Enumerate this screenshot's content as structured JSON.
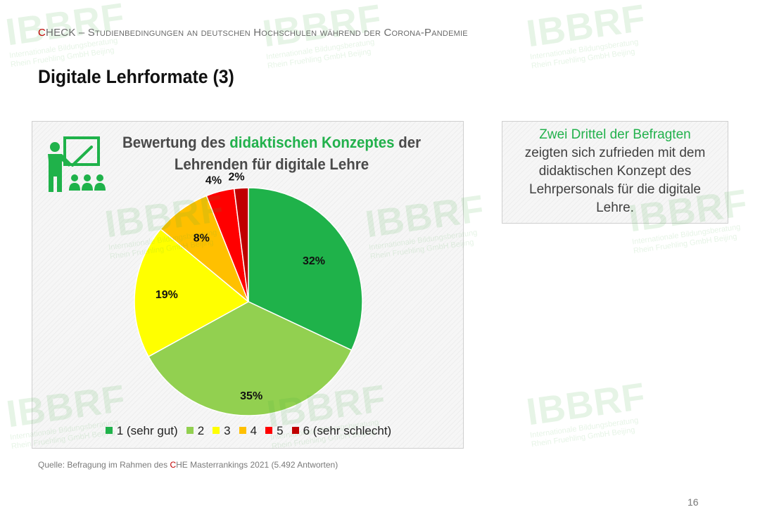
{
  "header": {
    "first_letter": "C",
    "rest": "HECK – Studienbedingungen an deutschen Hochschulen während der Corona-Pandemie"
  },
  "page_title": "Digitale Lehrformate (3)",
  "chart_data": {
    "type": "pie",
    "title_parts": [
      "Bewertung des ",
      "didaktischen Konzeptes",
      " der",
      "Lehrenden für digitale Lehre"
    ],
    "categories": [
      "1 (sehr gut)",
      "2",
      "3",
      "4",
      "5",
      "6 (sehr schlecht)"
    ],
    "values": [
      32,
      35,
      19,
      8,
      4,
      2
    ],
    "labels": [
      "32%",
      "35%",
      "19%",
      "8%",
      "4%",
      "2%"
    ],
    "colors": [
      "#1fb24a",
      "#92d050",
      "#ffff00",
      "#ffc000",
      "#ff0000",
      "#c00000"
    ],
    "start_angle": "12 o'clock",
    "direction": "clockwise",
    "legend_position": "bottom"
  },
  "callout": {
    "highlight": "Zwei Drittel der Befragten",
    "text": "zeigten sich zufrieden mit dem didaktischen Konzept des Lehrpersonals für die digitale Lehre."
  },
  "source": {
    "prefix": "Quelle: Befragung im Rahmen des ",
    "highlight": "C",
    "suffix": "HE Masterrankings 2021 (5.492 Antworten)"
  },
  "page_number": "16",
  "watermark": {
    "logo": "IBBRF",
    "line1": "Internationale Bildungsberatung",
    "line2": "Rhein Fruehling GmbH Beijing"
  }
}
